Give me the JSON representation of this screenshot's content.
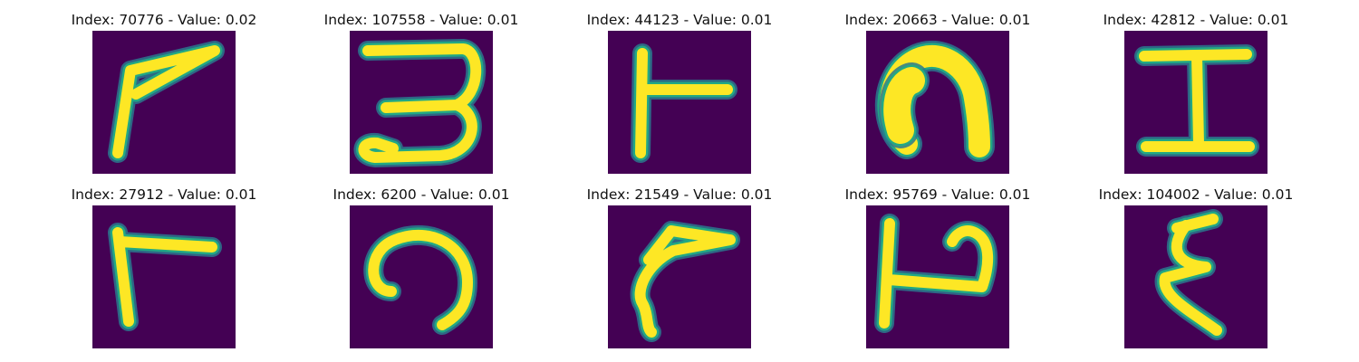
{
  "colors": {
    "background": "#440154",
    "glyph_outer": "#2a788e",
    "glyph_mid": "#22a884",
    "glyph_core": "#fde725"
  },
  "panels": [
    {
      "title": "Index: 70776 - Value: 0.02"
    },
    {
      "title": "Index: 107558 - Value: 0.01"
    },
    {
      "title": "Index: 44123 - Value: 0.01"
    },
    {
      "title": "Index: 20663 - Value: 0.01"
    },
    {
      "title": "Index: 42812 - Value: 0.01"
    },
    {
      "title": "Index: 27912 - Value: 0.01"
    },
    {
      "title": "Index: 6200 - Value: 0.01"
    },
    {
      "title": "Index: 21549 - Value: 0.01"
    },
    {
      "title": "Index: 95769 - Value: 0.01"
    },
    {
      "title": "Index: 104002 - Value: 0.01"
    }
  ]
}
